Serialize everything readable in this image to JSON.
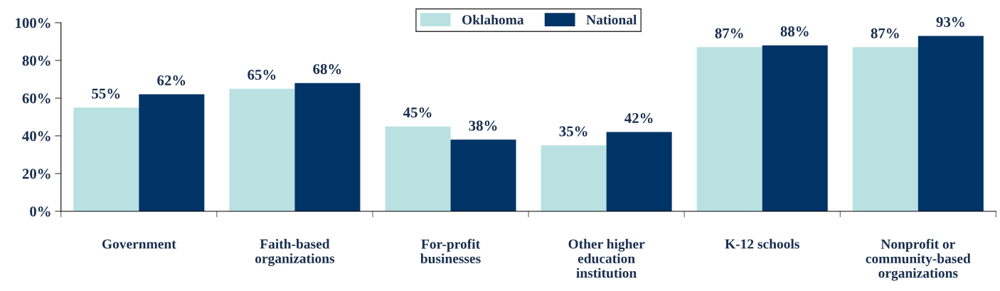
{
  "chart_data": {
    "type": "bar",
    "categories": [
      "Government",
      "Faith-based\norganizations",
      "For-profit\nbusinesses",
      "Other higher\neducation\ninstitution",
      "K-12 schools",
      "Nonprofit or\ncommunity-based\norganizations"
    ],
    "series": [
      {
        "name": "Oklahoma",
        "color": "#b9e1e1",
        "values": [
          55,
          65,
          45,
          35,
          87,
          87
        ],
        "value_labels": [
          "55%",
          "65%",
          "45%",
          "35%",
          "87%",
          "87%"
        ]
      },
      {
        "name": "National",
        "color": "#003366",
        "values": [
          62,
          68,
          38,
          42,
          88,
          93
        ],
        "value_labels": [
          "62%",
          "68%",
          "38%",
          "42%",
          "88%",
          "93%"
        ]
      }
    ],
    "ylim": [
      0,
      100
    ],
    "yticks": [
      {
        "value": 0,
        "label": "0%"
      },
      {
        "value": 20,
        "label": "20%"
      },
      {
        "value": 40,
        "label": "40%"
      },
      {
        "value": 60,
        "label": "60%"
      },
      {
        "value": 80,
        "label": "80%"
      },
      {
        "value": 100,
        "label": "100%"
      }
    ],
    "grid": false,
    "legend": "top"
  }
}
